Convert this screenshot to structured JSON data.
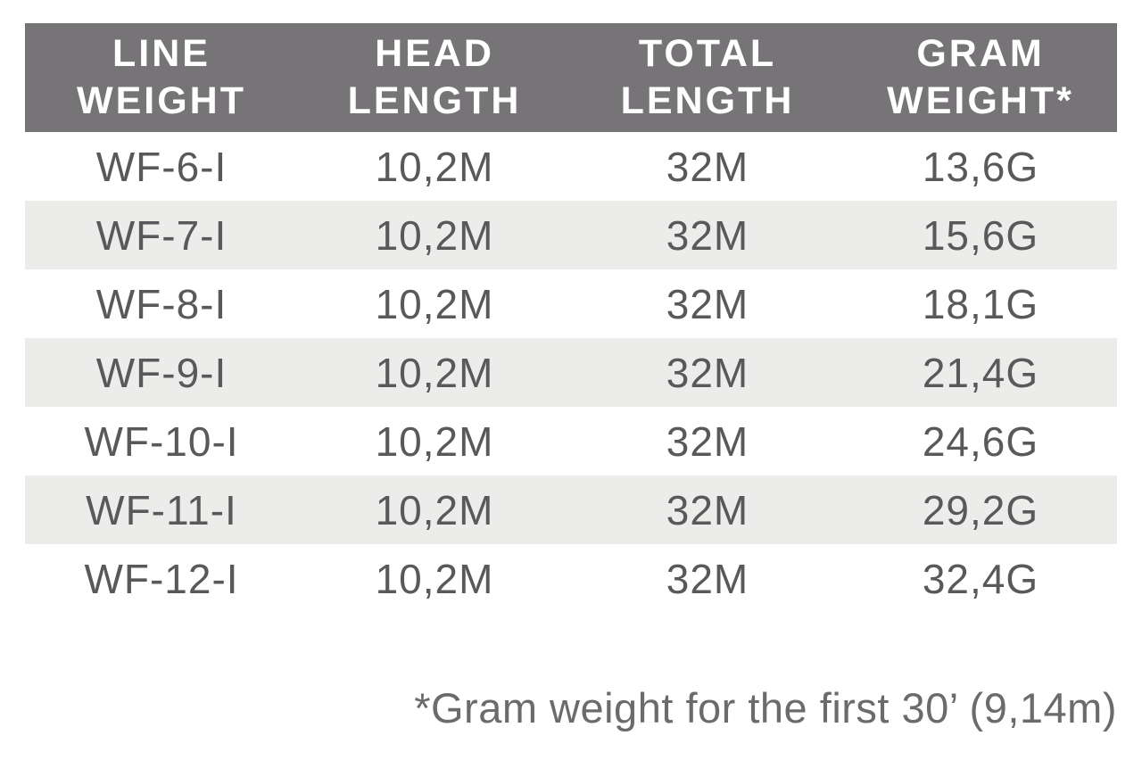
{
  "chart_data": {
    "type": "table",
    "columns": [
      "LINE WEIGHT",
      "HEAD LENGTH",
      "TOTAL LENGTH",
      "GRAM WEIGHT*"
    ],
    "columns_lines": [
      [
        "LINE",
        "WEIGHT"
      ],
      [
        "HEAD",
        "LENGTH"
      ],
      [
        "TOTAL",
        "LENGTH"
      ],
      [
        "GRAM",
        "WEIGHT*"
      ]
    ],
    "rows": [
      [
        "WF-6-I",
        "10,2M",
        "32M",
        "13,6G"
      ],
      [
        "WF-7-I",
        "10,2M",
        "32M",
        "15,6G"
      ],
      [
        "WF-8-I",
        "10,2M",
        "32M",
        "18,1G"
      ],
      [
        "WF-9-I",
        "10,2M",
        "32M",
        "21,4G"
      ],
      [
        "WF-10-I",
        "10,2M",
        "32M",
        "24,6G"
      ],
      [
        "WF-11-I",
        "10,2M",
        "32M",
        "29,2G"
      ],
      [
        "WF-12-I",
        "10,2M",
        "32M",
        "32,4G"
      ]
    ],
    "footnote": "*Gram weight for the first 30’ (9,14m)",
    "layout": {
      "striped_rows": "even",
      "grid": false
    }
  },
  "colors": {
    "header_bg": "#767476",
    "header_text": "#ffffff",
    "row_stripe": "#ececea",
    "cell_text": "#58595b",
    "footnote_text": "#6a6b6d",
    "page_bg": "#ffffff"
  }
}
